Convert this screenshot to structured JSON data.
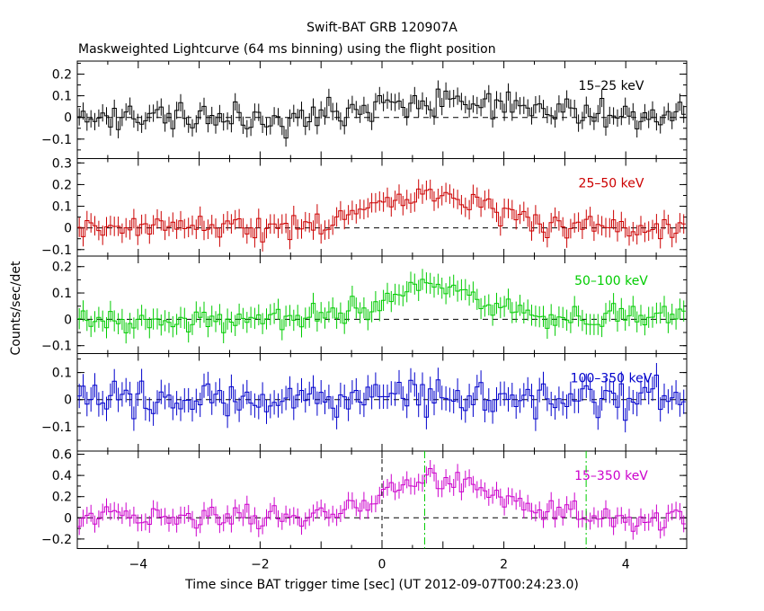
{
  "title": "Swift-BAT GRB 120907A",
  "subtitle": "Maskweighted Lightcurve (64 ms binning) using the flight position",
  "chart_data": {
    "type": "line",
    "xlabel": "Time since BAT trigger time [sec] (UT 2012-09-07T00:24:23.0)",
    "ylabel": "Counts/sec/det",
    "xlim": [
      -5,
      5
    ],
    "x_ticks": [
      -4,
      -2,
      0,
      2,
      4
    ],
    "x_tick_labels": [
      "−4",
      "−2",
      "0",
      "2",
      "4"
    ],
    "bin_width": 0.064,
    "seed": 120907,
    "vlines": [
      {
        "x": 0.0,
        "color": "#000000",
        "style": "dash",
        "panel": 4
      },
      {
        "x": 0.7,
        "color": "#00cc00",
        "style": "dashdot",
        "panel": 4
      },
      {
        "x": 3.35,
        "color": "#00cc00",
        "style": "dashdot",
        "panel": 4
      }
    ],
    "panels": [
      {
        "label": "15–25 keV",
        "color": "#000000",
        "ylim": [
          -0.19,
          0.26
        ],
        "yticks": [
          -0.1,
          0,
          0.1,
          0.2
        ],
        "ytick_labels": [
          "−0.1",
          "0",
          "0.1",
          "0.2"
        ],
        "noise": 0.045,
        "err": 0.04,
        "pulses": [
          {
            "t": 1.0,
            "amp": 0.08,
            "w": 1.0
          }
        ]
      },
      {
        "label": "25–50 keV",
        "color": "#cc0000",
        "ylim": [
          -0.13,
          0.32
        ],
        "yticks": [
          -0.1,
          0,
          0.1,
          0.2,
          0.3
        ],
        "ytick_labels": [
          "−0.1",
          "0",
          "0.1",
          "0.2",
          "0.3"
        ],
        "noise": 0.04,
        "err": 0.045,
        "pulses": [
          {
            "t": 0.8,
            "amp": 0.15,
            "w": 1.0
          }
        ]
      },
      {
        "label": "50–100 keV",
        "color": "#00cc00",
        "ylim": [
          -0.13,
          0.24
        ],
        "yticks": [
          -0.1,
          0,
          0.1,
          0.2
        ],
        "ytick_labels": [
          "−0.1",
          "0",
          "0.1",
          "0.2"
        ],
        "noise": 0.035,
        "err": 0.04,
        "pulses": [
          {
            "t": 0.9,
            "amp": 0.12,
            "w": 0.8
          }
        ]
      },
      {
        "label": "100–350 keV",
        "color": "#0000cc",
        "ylim": [
          -0.19,
          0.17
        ],
        "yticks": [
          -0.1,
          0,
          0.1
        ],
        "ytick_labels": [
          "−0.1",
          "0",
          "0.1"
        ],
        "noise": 0.045,
        "err": 0.045,
        "pulses": [
          {
            "t": 0.6,
            "amp": 0.02,
            "w": 0.6
          }
        ]
      },
      {
        "label": "15–350 keV",
        "color": "#cc00cc",
        "ylim": [
          -0.29,
          0.63
        ],
        "yticks": [
          -0.2,
          0,
          0.2,
          0.4,
          0.6
        ],
        "ytick_labels": [
          "−0.2",
          "0",
          "0.2",
          "0.4",
          "0.6"
        ],
        "noise": 0.075,
        "err": 0.08,
        "pulses": [
          {
            "t": 0.9,
            "amp": 0.38,
            "w": 0.9
          }
        ]
      }
    ]
  }
}
